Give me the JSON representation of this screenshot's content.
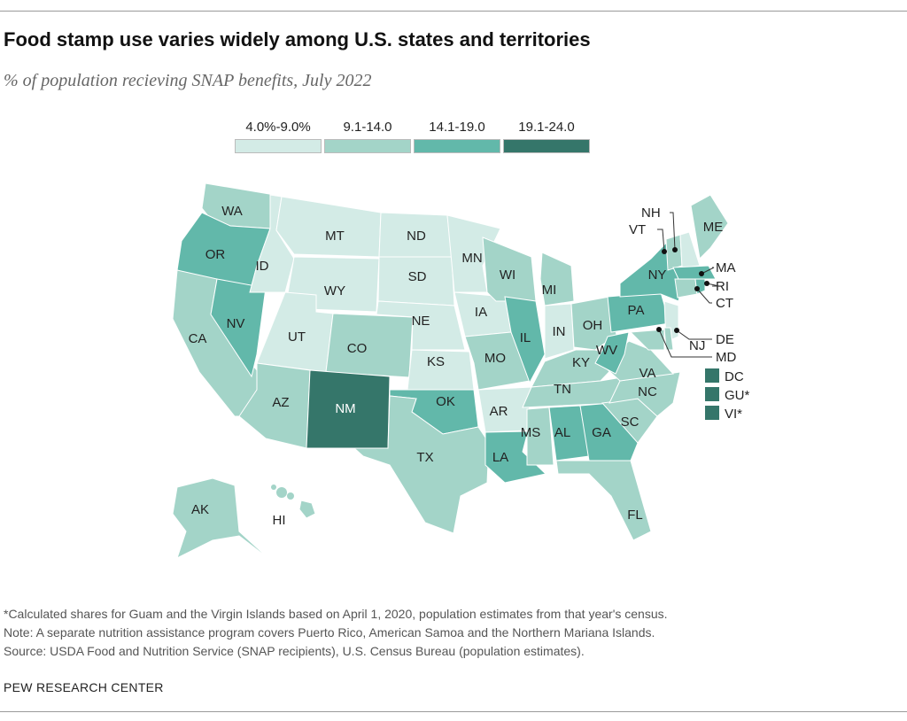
{
  "title": "Food stamp use varies widely among U.S. states and territories",
  "subtitle": "% of population recieving SNAP benefits, July 2022",
  "chart_data": {
    "type": "choropleth-map",
    "legend": [
      {
        "label": "4.0%-9.0%",
        "color": "#d3ebe6"
      },
      {
        "label": "9.1-14.0",
        "color": "#a3d4c8"
      },
      {
        "label": "14.1-19.0",
        "color": "#62b8aa"
      },
      {
        "label": "19.1-24.0",
        "color": "#35766a"
      }
    ],
    "bins": {
      "4.0%-9.0%": [
        "MT",
        "ID",
        "WY",
        "ND",
        "SD",
        "NE",
        "KS",
        "UT",
        "MN",
        "IA",
        "IN",
        "AR",
        "NH",
        "NJ"
      ],
      "9.1-14.0": [
        "WA",
        "CA",
        "AZ",
        "CO",
        "TX",
        "MO",
        "WI",
        "MI",
        "OH",
        "KY",
        "TN",
        "MS",
        "FL",
        "SC",
        "NC",
        "VA",
        "MD",
        "DE",
        "CT",
        "VT",
        "ME",
        "AK",
        "HI"
      ],
      "14.1-19.0": [
        "OR",
        "NV",
        "OK",
        "IL",
        "LA",
        "AL",
        "GA",
        "WV",
        "PA",
        "NY",
        "MA",
        "RI"
      ],
      "19.1-24.0": [
        "NM",
        "DC",
        "GU*",
        "VI*"
      ]
    },
    "territory_boxes": [
      "DC",
      "GU*",
      "VI*"
    ]
  },
  "notes": [
    "*Calculated shares for Guam and the Virgin Islands based on April 1, 2020, population estimates from that year's census.",
    "Note: A separate nutrition assistance program covers Puerto Rico, American Samoa and the Northern Mariana Islands.",
    "Source: USDA Food and Nutrition Service (SNAP recipients), U.S. Census Bureau (population estimates)."
  ],
  "brand": "PEW RESEARCH CENTER"
}
